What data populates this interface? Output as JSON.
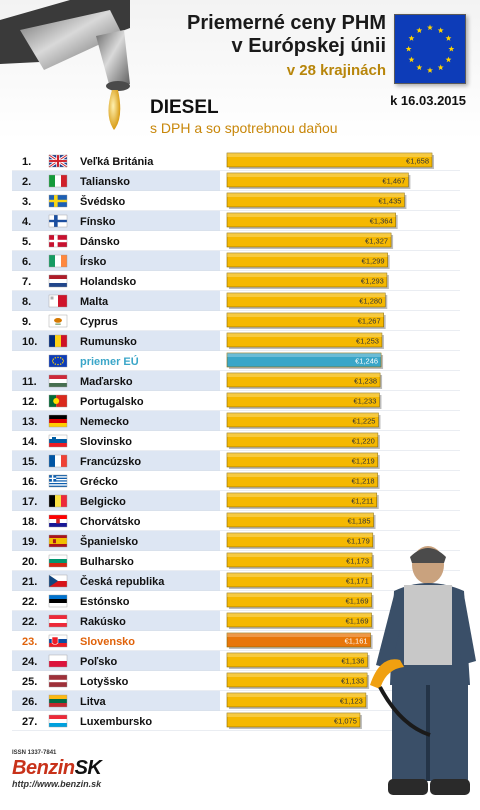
{
  "header": {
    "title_line1": "Priemerné ceny PHM",
    "title_line2": "v Európskej únii",
    "subtitle": "v 28 krajinách",
    "date": "k 16.03.2015"
  },
  "fuel_label": "DIESEL",
  "vat_note": "s DPH a so spotrebnou daňou",
  "colors": {
    "bar": "#f5b800",
    "bar_average": "#3aa6c8",
    "bar_highlight": "#e8760a",
    "highlight_text": "#e0620a",
    "average_text": "#3aa6c8",
    "row_alt": "#dde6f3"
  },
  "chart_data": {
    "type": "bar",
    "orientation": "horizontal",
    "currency_symbol": "€",
    "rows": [
      {
        "rank": "1.",
        "country": "Veľká Británia",
        "value": "1,658",
        "v": 1.658,
        "flag": "uk-flag-icon"
      },
      {
        "rank": "2.",
        "country": "Taliansko",
        "value": "1,467",
        "v": 1.467,
        "flag": "italy-flag-icon"
      },
      {
        "rank": "3.",
        "country": "Švédsko",
        "value": "1,435",
        "v": 1.435,
        "flag": "sweden-flag-icon"
      },
      {
        "rank": "4.",
        "country": "Fínsko",
        "value": "1,364",
        "v": 1.364,
        "flag": "finland-flag-icon"
      },
      {
        "rank": "5.",
        "country": "Dánsko",
        "value": "1,327",
        "v": 1.327,
        "flag": "denmark-flag-icon"
      },
      {
        "rank": "6.",
        "country": "Írsko",
        "value": "1,299",
        "v": 1.299,
        "flag": "ireland-flag-icon"
      },
      {
        "rank": "7.",
        "country": "Holandsko",
        "value": "1,293",
        "v": 1.293,
        "flag": "netherlands-flag-icon"
      },
      {
        "rank": "8.",
        "country": "Malta",
        "value": "1,280",
        "v": 1.28,
        "flag": "malta-flag-icon"
      },
      {
        "rank": "9.",
        "country": "Cyprus",
        "value": "1,267",
        "v": 1.267,
        "flag": "cyprus-flag-icon"
      },
      {
        "rank": "10.",
        "country": "Rumunsko",
        "value": "1,253",
        "v": 1.253,
        "flag": "romania-flag-icon"
      },
      {
        "rank": "",
        "country": "priemer EÚ",
        "value": "1,246",
        "v": 1.246,
        "flag": "eu-flag-icon",
        "kind": "average"
      },
      {
        "rank": "11.",
        "country": "Maďarsko",
        "value": "1,238",
        "v": 1.238,
        "flag": "hungary-flag-icon"
      },
      {
        "rank": "12.",
        "country": "Portugalsko",
        "value": "1,233",
        "v": 1.233,
        "flag": "portugal-flag-icon"
      },
      {
        "rank": "13.",
        "country": "Nemecko",
        "value": "1,225",
        "v": 1.225,
        "flag": "germany-flag-icon"
      },
      {
        "rank": "14.",
        "country": "Slovinsko",
        "value": "1,220",
        "v": 1.22,
        "flag": "slovenia-flag-icon"
      },
      {
        "rank": "15.",
        "country": "Francúzsko",
        "value": "1,219",
        "v": 1.219,
        "flag": "france-flag-icon"
      },
      {
        "rank": "16.",
        "country": "Grécko",
        "value": "1,218",
        "v": 1.218,
        "flag": "greece-flag-icon"
      },
      {
        "rank": "17.",
        "country": "Belgicko",
        "value": "1,211",
        "v": 1.211,
        "flag": "belgium-flag-icon"
      },
      {
        "rank": "18.",
        "country": "Chorvátsko",
        "value": "1,185",
        "v": 1.185,
        "flag": "croatia-flag-icon"
      },
      {
        "rank": "19.",
        "country": "Španielsko",
        "value": "1,179",
        "v": 1.179,
        "flag": "spain-flag-icon"
      },
      {
        "rank": "20.",
        "country": "Bulharsko",
        "value": "1,173",
        "v": 1.173,
        "flag": "bulgaria-flag-icon"
      },
      {
        "rank": "21.",
        "country": "Česká republika",
        "value": "1,171",
        "v": 1.171,
        "flag": "czech-flag-icon"
      },
      {
        "rank": "22.",
        "country": "Estónsko",
        "value": "1,169",
        "v": 1.169,
        "flag": "estonia-flag-icon"
      },
      {
        "rank": "22.",
        "country": "Rakúsko",
        "value": "1,169",
        "v": 1.169,
        "flag": "austria-flag-icon"
      },
      {
        "rank": "23.",
        "country": "Slovensko",
        "value": "1,161",
        "v": 1.161,
        "flag": "slovakia-flag-icon",
        "kind": "highlight"
      },
      {
        "rank": "24.",
        "country": "Poľsko",
        "value": "1,136",
        "v": 1.136,
        "flag": "poland-flag-icon"
      },
      {
        "rank": "25.",
        "country": "Lotyšsko",
        "value": "1,133",
        "v": 1.133,
        "flag": "latvia-flag-icon"
      },
      {
        "rank": "26.",
        "country": "Litva",
        "value": "1,123",
        "v": 1.123,
        "flag": "lithuania-flag-icon"
      },
      {
        "rank": "27.",
        "country": "Luxembursko",
        "value": "1,075",
        "v": 1.075,
        "flag": "luxembourg-flag-icon"
      }
    ]
  },
  "footer": {
    "issn": "ISSN 1337-7841",
    "brand_main": "Benzin",
    "brand_suffix": "SK",
    "url": "http://www.benzin.sk"
  }
}
